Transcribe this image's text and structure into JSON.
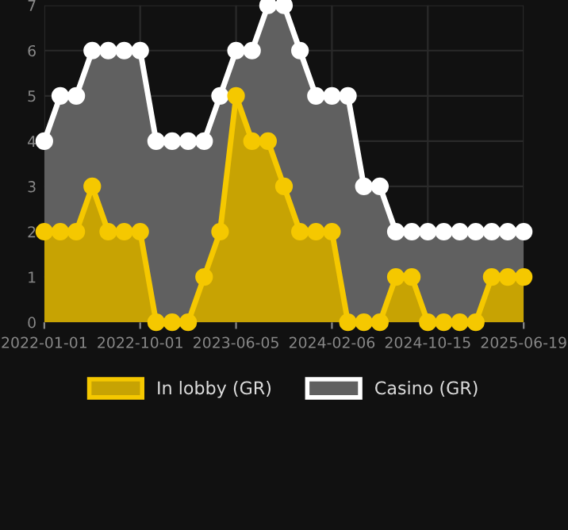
{
  "chart_data": {
    "type": "area",
    "categories": [
      "2022-01-01",
      null,
      null,
      null,
      null,
      null,
      "2022-10-01",
      null,
      null,
      null,
      null,
      null,
      "2023-06-05",
      null,
      null,
      null,
      null,
      null,
      "2024-02-06",
      null,
      null,
      null,
      null,
      null,
      "2024-10-15",
      null,
      null,
      null,
      null,
      null,
      "2025-06-19"
    ],
    "series": [
      {
        "name": "Casino (GR)",
        "color": "#ffffff",
        "values": [
          4,
          5,
          5,
          6,
          6,
          6,
          6,
          4,
          4,
          4,
          4,
          5,
          6,
          6,
          7,
          7,
          6,
          5,
          5,
          5,
          3,
          3,
          2,
          2,
          2,
          2,
          2,
          2,
          2,
          2,
          2
        ]
      },
      {
        "name": "In lobby (GR)",
        "color": "#f5c800",
        "values": [
          2,
          2,
          2,
          3,
          2,
          2,
          2,
          0,
          0,
          0,
          1,
          2,
          5,
          4,
          4,
          3,
          2,
          2,
          2,
          0,
          0,
          0,
          1,
          1,
          0,
          0,
          0,
          0,
          1,
          1,
          1
        ]
      }
    ],
    "ylim": [
      0,
      7
    ],
    "yticks": [
      0,
      1,
      2,
      3,
      4,
      5,
      6,
      7
    ],
    "grid": true,
    "legend": "bottom",
    "marker": "circle",
    "line_style": "solid"
  }
}
